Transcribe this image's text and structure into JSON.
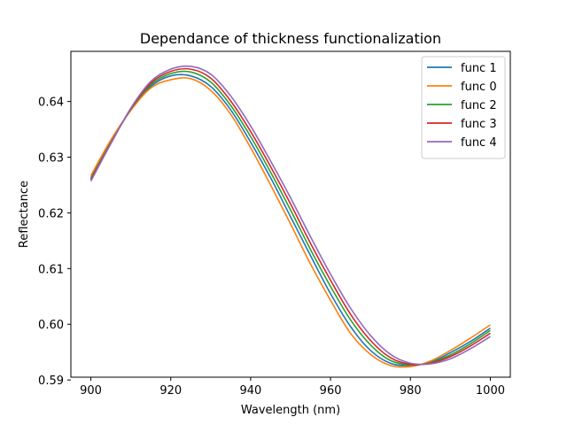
{
  "chart_data": {
    "type": "line",
    "title": "Dependance of thickness functionalization",
    "xlabel": "Wavelength (nm)",
    "ylabel": "Reflectance",
    "xlim": [
      895,
      1005
    ],
    "ylim": [
      0.5905,
      0.649
    ],
    "xticks": [
      900,
      920,
      940,
      960,
      980,
      1000
    ],
    "xtick_labels": [
      "900",
      "920",
      "940",
      "960",
      "980",
      "1000"
    ],
    "yticks": [
      0.59,
      0.6,
      0.61,
      0.62,
      0.63,
      0.64
    ],
    "ytick_labels": [
      "0.59",
      "0.60",
      "0.61",
      "0.62",
      "0.63",
      "0.64"
    ],
    "grid": false,
    "legend_position": "top-right",
    "x": [
      900,
      905,
      910,
      915,
      920,
      925,
      930,
      935,
      940,
      945,
      950,
      955,
      960,
      965,
      970,
      975,
      980,
      985,
      990,
      995,
      1000
    ],
    "series": [
      {
        "name": "func 1",
        "color": "#1f77b4",
        "values": [
          0.6263,
          0.6327,
          0.6385,
          0.6427,
          0.6446,
          0.6446,
          0.6427,
          0.6385,
          0.6327,
          0.6263,
          0.6193,
          0.6123,
          0.6055,
          0.5996,
          0.5953,
          0.593,
          0.5926,
          0.5932,
          0.5949,
          0.5969,
          0.5993
        ]
      },
      {
        "name": "func 0",
        "color": "#ff7f0e",
        "values": [
          0.6267,
          0.6331,
          0.6384,
          0.6424,
          0.6439,
          0.6441,
          0.642,
          0.6377,
          0.6317,
          0.625,
          0.618,
          0.6108,
          0.6043,
          0.5984,
          0.5946,
          0.5926,
          0.5924,
          0.5934,
          0.5953,
          0.5975,
          0.5999
        ]
      },
      {
        "name": "func 2",
        "color": "#2ca02c",
        "values": [
          0.6261,
          0.6326,
          0.6386,
          0.643,
          0.645,
          0.6453,
          0.6435,
          0.6393,
          0.6337,
          0.6273,
          0.6205,
          0.6134,
          0.6068,
          0.6008,
          0.5963,
          0.5935,
          0.5927,
          0.5931,
          0.5945,
          0.5965,
          0.5989
        ]
      },
      {
        "name": "func 3",
        "color": "#d62728",
        "values": [
          0.6259,
          0.6325,
          0.6387,
          0.6433,
          0.6454,
          0.6458,
          0.6442,
          0.6401,
          0.6346,
          0.6283,
          0.6216,
          0.6145,
          0.6079,
          0.6018,
          0.5971,
          0.594,
          0.5928,
          0.593,
          0.5942,
          0.5961,
          0.5984
        ]
      },
      {
        "name": "func 4",
        "color": "#9467bd",
        "values": [
          0.6257,
          0.6324,
          0.6388,
          0.6436,
          0.6458,
          0.6463,
          0.6449,
          0.641,
          0.6356,
          0.6293,
          0.6227,
          0.6157,
          0.609,
          0.6029,
          0.598,
          0.5946,
          0.593,
          0.5929,
          0.5938,
          0.5956,
          0.5978
        ]
      }
    ]
  }
}
